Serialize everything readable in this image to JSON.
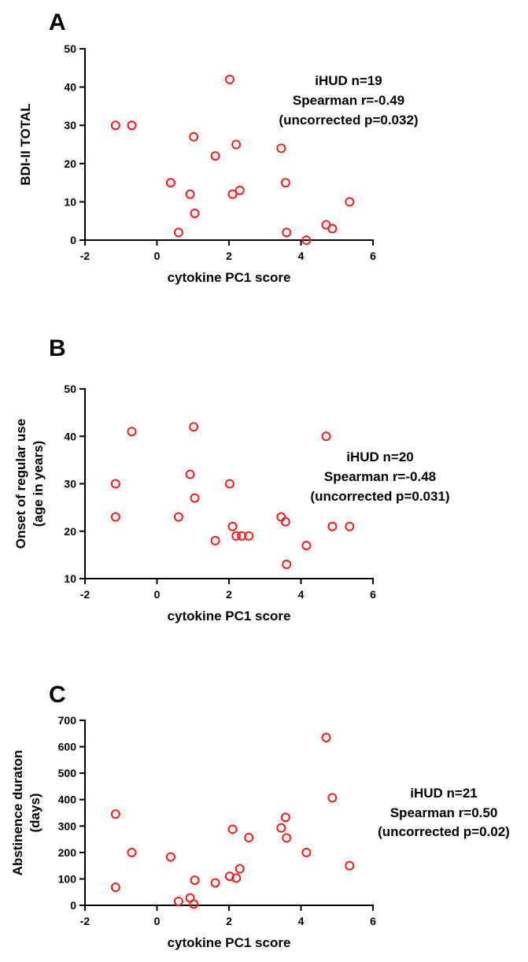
{
  "chart_data": [
    {
      "panel": "A",
      "type": "scatter",
      "xlabel": "cytokine PC1 score",
      "ylabel": "BDI-II TOTAL",
      "xlim": [
        -2,
        6
      ],
      "ylim": [
        0,
        50
      ],
      "xticks": [
        "-2",
        "0",
        "2",
        "4",
        "6"
      ],
      "yticks": [
        "0",
        "10",
        "20",
        "30",
        "40",
        "50"
      ],
      "annotation": [
        "iHUD n=19",
        "Spearman r=-0.49",
        "(uncorrected p=0.032)"
      ],
      "color": "#ff1a1a",
      "points": [
        [
          -1.15,
          30
        ],
        [
          -0.7,
          30
        ],
        [
          0.38,
          15
        ],
        [
          0.6,
          2
        ],
        [
          0.92,
          12
        ],
        [
          1.02,
          27
        ],
        [
          1.05,
          7
        ],
        [
          1.62,
          22
        ],
        [
          2.02,
          42
        ],
        [
          2.1,
          12
        ],
        [
          2.2,
          25
        ],
        [
          2.3,
          13
        ],
        [
          3.45,
          24
        ],
        [
          3.57,
          15
        ],
        [
          3.6,
          2
        ],
        [
          4.15,
          0
        ],
        [
          4.7,
          4
        ],
        [
          4.87,
          3
        ],
        [
          5.35,
          10
        ]
      ]
    },
    {
      "panel": "B",
      "type": "scatter",
      "xlabel": "cytokine PC1 score",
      "ylabel": [
        "Onset of regular use",
        "(age in years)"
      ],
      "xlim": [
        -2,
        6
      ],
      "ylim": [
        10,
        50
      ],
      "xticks": [
        "-2",
        "0",
        "2",
        "4",
        "6"
      ],
      "yticks": [
        "10",
        "20",
        "30",
        "40",
        "50"
      ],
      "annotation": [
        "iHUD n=20",
        "Spearman r=-0.48",
        "(uncorrected p=0.031)"
      ],
      "color": "#ff1a1a",
      "points": [
        [
          -1.15,
          30
        ],
        [
          -1.15,
          23
        ],
        [
          -0.7,
          41
        ],
        [
          0.6,
          23
        ],
        [
          0.92,
          32
        ],
        [
          1.02,
          42
        ],
        [
          1.05,
          27
        ],
        [
          1.62,
          18
        ],
        [
          2.02,
          30
        ],
        [
          2.1,
          21
        ],
        [
          2.2,
          19
        ],
        [
          2.35,
          19
        ],
        [
          2.55,
          19
        ],
        [
          3.45,
          23
        ],
        [
          3.57,
          22
        ],
        [
          3.6,
          13
        ],
        [
          4.15,
          17
        ],
        [
          4.7,
          40
        ],
        [
          4.87,
          21
        ],
        [
          5.35,
          21
        ]
      ]
    },
    {
      "panel": "C",
      "type": "scatter",
      "xlabel": "cytokine PC1 score",
      "ylabel": [
        "Abstinence duraton",
        "(days)"
      ],
      "xlim": [
        -2,
        6
      ],
      "ylim": [
        0,
        700
      ],
      "xticks": [
        "-2",
        "0",
        "2",
        "4",
        "6"
      ],
      "yticks": [
        "0",
        "100",
        "200",
        "300",
        "400",
        "500",
        "600",
        "700"
      ],
      "annotation": [
        "iHUD n=21",
        "Spearman r=0.50",
        "(uncorrected p=0.02)"
      ],
      "color": "#ff1a1a",
      "points": [
        [
          -1.15,
          345
        ],
        [
          -1.15,
          68
        ],
        [
          -0.7,
          200
        ],
        [
          0.38,
          183
        ],
        [
          0.6,
          15
        ],
        [
          0.92,
          28
        ],
        [
          1.02,
          5
        ],
        [
          1.05,
          95
        ],
        [
          1.62,
          85
        ],
        [
          2.02,
          110
        ],
        [
          2.1,
          288
        ],
        [
          2.2,
          103
        ],
        [
          2.3,
          138
        ],
        [
          2.55,
          256
        ],
        [
          3.45,
          293
        ],
        [
          3.57,
          333
        ],
        [
          3.6,
          255
        ],
        [
          4.15,
          200
        ],
        [
          4.7,
          635
        ],
        [
          4.87,
          407
        ],
        [
          5.35,
          150
        ]
      ]
    }
  ]
}
